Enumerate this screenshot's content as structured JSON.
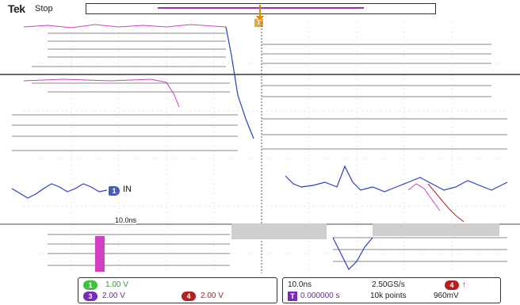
{
  "header": {
    "brand": "Tek",
    "run_state": "Stop",
    "trigger_position_label": "T"
  },
  "waveform_area": {
    "ch1_marker": "1",
    "ch1_label": "IN",
    "measurement_note": "10.0ns"
  },
  "status_bar": {
    "ch1_badge": "1",
    "ch1_scale": "1.00 V",
    "ch3_badge": "3",
    "ch3_scale": "2.00 V",
    "ch4_badge": "4",
    "ch4_scale": "2.00 V",
    "timebase": "10.0ns",
    "sample_rate": "2.50GS/s",
    "trigger_badge": "T",
    "trigger_time": "0.000000 s",
    "record_length": "10k points",
    "trigger_ch_badge": "4",
    "trigger_coupling": "↑",
    "trigger_level": "960mV"
  },
  "colors": {
    "ch1": "#3cc43c",
    "ch3": "#7a2ab8",
    "ch4": "#b32020",
    "trigger": "#e08a00",
    "waveform_blue": "#2a3ec8",
    "waveform_pink": "#d040c0"
  }
}
